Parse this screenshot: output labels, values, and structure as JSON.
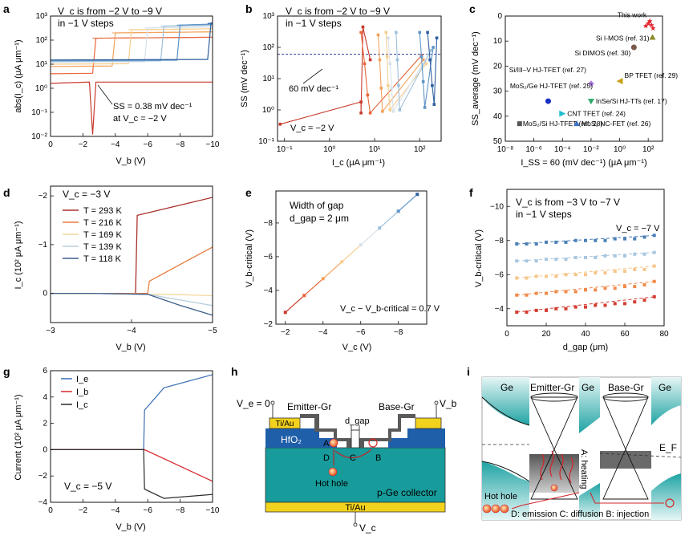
{
  "panels": {
    "a": {
      "letter": "a",
      "note_line1": "V_c is from −2 V to −9 V",
      "note_line2": "in −1 V steps",
      "annotation_line1": "SS = 0.38 mV dec⁻¹",
      "annotation_line2": "at V_c = −2 V",
      "ylabel": "abs(I_c) (μA μm⁻¹)",
      "xlabel": "V_b (V)",
      "xticks": [
        "0",
        "−2",
        "−4",
        "−6",
        "−8",
        "−10"
      ],
      "yticks": [
        "10⁻²",
        "10⁻¹",
        "10⁰",
        "10¹",
        "10²",
        "10³"
      ]
    },
    "b": {
      "letter": "b",
      "note_line1": "V_c is from −2 V to −9 V",
      "note_line2": "in −1 V steps",
      "ref_label": "60 mV dec⁻¹",
      "vc_label": "V_c = −2 V",
      "ylabel": "SS (mV dec⁻¹)",
      "xlabel": "I_c (μA μm⁻¹)",
      "xticks": [
        "10⁻¹",
        "10⁰",
        "10¹",
        "10²"
      ],
      "yticks": [
        "10⁻¹",
        "10⁰",
        "10¹",
        "10²",
        "10³"
      ]
    },
    "c": {
      "letter": "c",
      "ylabel": "SS_average (mV dec⁻¹)",
      "xlabel": "I_SS = 60 (mV dec⁻¹) (μA μm⁻¹)",
      "xticks": [
        "10⁻⁸",
        "10⁻⁶",
        "10⁻⁴",
        "10⁻²",
        "10⁰",
        "10²"
      ],
      "yticks": [
        "0",
        "10",
        "20",
        "30",
        "40",
        "50"
      ]
    },
    "d": {
      "letter": "d",
      "vc_label": "V_c = −3 V",
      "ylabel": "I_c (10² μA μm⁻¹)",
      "xlabel": "V_b (V)",
      "xticks": [
        "−3",
        "−4",
        "−5"
      ],
      "yticks": [
        "0",
        "−1",
        "−2"
      ]
    },
    "e": {
      "letter": "e",
      "gap_line1": "Width of gap",
      "gap_line2": "d_gap = 2 μm",
      "relation": "V_c − V_b-critical = 0.7 V",
      "ylabel": "V_b-critical (V)",
      "xlabel": "V_c (V)",
      "xticks": [
        "−2",
        "−4",
        "−6",
        "−8"
      ],
      "yticks": [
        "−2",
        "−4",
        "−6",
        "−8"
      ]
    },
    "f": {
      "letter": "f",
      "note_line1": "V_c is from −3 V to −7 V",
      "note_line2": "in −1 V steps",
      "vc_label": "V_c = −7 V",
      "ylabel": "V_b-critical (V)",
      "xlabel": "d_gap (μm)",
      "xticks": [
        "0",
        "20",
        "40",
        "60",
        "80"
      ],
      "yticks": [
        "−4",
        "−6",
        "−8",
        "−10"
      ]
    },
    "g": {
      "letter": "g",
      "vc_label": "V_c = −5 V",
      "ylabel": "Current (10² μA μm⁻¹)",
      "xlabel": "V_b (V)",
      "xticks": [
        "0",
        "−2",
        "−4",
        "−6",
        "−8",
        "−10"
      ],
      "yticks": [
        "−4",
        "−2",
        "0",
        "2",
        "4",
        "6"
      ]
    },
    "h": {
      "letter": "h",
      "ve_label": "V_e = 0",
      "vb_label": "V_b",
      "vc_label": "V_c",
      "emitter": "Emitter-Gr",
      "base": "Base-Gr",
      "contact_left": "Ti/Au",
      "contact_bottom": "Ti/Au",
      "contact_right": "Ti/Au",
      "dielectric": "HfO₂",
      "gap": "d_gap",
      "hole_label": "Hot hole",
      "collector": "p-Ge collector",
      "point_a": "A",
      "point_b": "B",
      "point_c": "C",
      "point_d": "D"
    },
    "i": {
      "letter": "i",
      "ge_left": "Ge",
      "ge_mid": "Ge",
      "ge_right": "Ge",
      "emitter": "Emitter-Gr",
      "base": "Base-Gr",
      "fermi": "E_F",
      "heating": "A: heating",
      "hole": "Hot hole",
      "steps": "D: emission C: diffusion B: injection"
    }
  },
  "colors": {
    "vc_series": [
      "#c8392b",
      "#e8663a",
      "#f3a25c",
      "#f6cf8f",
      "#d6e2ea",
      "#9fc0dc",
      "#5f95c6",
      "#2f5f9f"
    ],
    "d_series": [
      "#a8322d",
      "#ea7c40",
      "#f4d9a0",
      "#b9cfdd",
      "#3d5f8a"
    ],
    "f_series": [
      "#d43d30",
      "#f08a4a",
      "#f6c68a",
      "#a7c6e0",
      "#4a7fb5"
    ],
    "g_series": [
      "#3a6fb4",
      "#d8282e",
      "#2a2a2a"
    ],
    "teal": "#149999",
    "contact": "#f3d21e",
    "hfo2": "#1f5ea8",
    "graphene": "#555555"
  },
  "chart_data": [
    {
      "panel": "a",
      "type": "line",
      "xlabel": "V_b (V)",
      "ylabel": "abs(I_c) (μA μm⁻¹)",
      "yscale": "log",
      "xlim": [
        0,
        -10
      ],
      "ylim": [
        0.01,
        1000
      ],
      "series": [
        {
          "name": "V_c = −2 V",
          "low": 1.8,
          "switch_vb": -2.6,
          "high": 1.8
        },
        {
          "name": "V_c = −3 V",
          "low": 4,
          "switch_vb": -2.8,
          "high": 120
        },
        {
          "name": "V_c = −4 V",
          "low": 8,
          "switch_vb": -4.0,
          "high": 200
        },
        {
          "name": "V_c = −5 V",
          "low": 10,
          "switch_vb": -5.0,
          "high": 270
        },
        {
          "name": "V_c = −6 V",
          "low": 12,
          "switch_vb": -6.0,
          "high": 320
        },
        {
          "name": "V_c = −7 V",
          "low": 13,
          "switch_vb": -7.0,
          "high": 380
        },
        {
          "name": "V_c = −8 V",
          "low": 14,
          "switch_vb": -8.0,
          "high": 420
        },
        {
          "name": "V_c = −9 V",
          "low": 15,
          "switch_vb": -9.9,
          "high": 480
        }
      ]
    },
    {
      "panel": "b",
      "type": "line",
      "xlabel": "I_c (μA μm⁻¹)",
      "ylabel": "SS (mV dec⁻¹)",
      "xscale": "log",
      "yscale": "log",
      "xlim": [
        0.07,
        300
      ],
      "ylim": [
        0.1,
        1000
      ],
      "reference_ss": 60,
      "series": [
        {
          "name": "V_c = −2 V",
          "x": [
            0.08,
            5,
            5,
            5.5,
            8
          ],
          "y": [
            0.35,
            1.8,
            0.8,
            450,
            40
          ]
        },
        {
          "name": "V_c = −3 V",
          "x": [
            5,
            6,
            7,
            8,
            110
          ],
          "y": [
            300,
            30,
            3,
            0.8,
            55
          ]
        },
        {
          "name": "V_c = −4 V",
          "x": [
            12,
            13,
            14,
            15,
            120
          ],
          "y": [
            250,
            40,
            5,
            0.9,
            40
          ]
        },
        {
          "name": "V_c = −5 V",
          "x": [
            18,
            19,
            20,
            22,
            140
          ],
          "y": [
            300,
            50,
            6,
            1,
            30
          ]
        },
        {
          "name": "V_c = −6 V",
          "x": [
            20,
            22,
            24,
            26,
            160
          ],
          "y": [
            200,
            30,
            5,
            0.9,
            60
          ]
        },
        {
          "name": "V_c = −7 V",
          "x": [
            30,
            32,
            34,
            36,
            180
          ],
          "y": [
            300,
            40,
            6,
            1,
            80
          ]
        },
        {
          "name": "V_c = −8 V",
          "x": [
            100,
            110,
            120,
            130,
            200
          ],
          "y": [
            300,
            50,
            8,
            1.2,
            100
          ]
        },
        {
          "name": "V_c = −9 V",
          "x": [
            150,
            170,
            190,
            210,
            240
          ],
          "y": [
            300,
            40,
            6,
            1.5,
            200
          ]
        }
      ]
    },
    {
      "panel": "c",
      "type": "scatter",
      "xlabel": "I_SS = 60 (mV dec⁻¹) (μA μm⁻¹)",
      "ylabel": "SS_average (mV dec⁻¹)",
      "xscale": "log",
      "xlim": [
        1e-08,
        1000
      ],
      "ylim": [
        0,
        50
      ],
      "yaxis_inverted": true,
      "points": [
        {
          "label": "This work",
          "x": 100,
          "y": 3,
          "color": "#e3232b",
          "marker": "star"
        },
        {
          "label": "Si I-MOS (ref. 31)",
          "x": 200,
          "y": 8.5,
          "color": "#8a8a2b",
          "marker": "triangle"
        },
        {
          "label": "Si DIMOS (ref. 30)",
          "x": 10,
          "y": 12.5,
          "color": "#7a5a4a",
          "marker": "circle"
        },
        {
          "label": "Si/III–V HJ-TFET (ref. 27)",
          "x": 0.01,
          "y": 27,
          "color": "#b07fe0",
          "marker": "diamond"
        },
        {
          "label": "BP TFET (ref. 29)",
          "x": 1,
          "y": 26,
          "color": "#c7a016",
          "marker": "triangle-left"
        },
        {
          "label": "MoS₂/Ge HJ-TFET (ref. 25)",
          "x": 1e-05,
          "y": 34,
          "color": "#1a2fc0",
          "marker": "circle"
        },
        {
          "label": "InSe/Si HJ-TTs (ref. 17)",
          "x": 0.01,
          "y": 34,
          "color": "#2aa86a",
          "marker": "triangle-down"
        },
        {
          "label": "CNT TFET (ref. 24)",
          "x": 0.0001,
          "y": 39,
          "color": "#22bcd0",
          "marker": "triangle-right"
        },
        {
          "label": "MoS₂/Si HJ-TFET (ref. 28)",
          "x": 1e-07,
          "y": 43,
          "color": "#555555",
          "marker": "square"
        },
        {
          "label": "MoS₂ NC-FET (ref. 26)",
          "x": 0.001,
          "y": 43,
          "color": "#3a6fc4",
          "marker": "triangle"
        }
      ]
    },
    {
      "panel": "d",
      "type": "line",
      "xlabel": "V_b (V)",
      "ylabel": "I_c (10² μA μm⁻¹)",
      "xlim": [
        -3,
        -5
      ],
      "ylim": [
        0.6,
        -2.2
      ],
      "series": [
        {
          "name": "T = 293 K",
          "switch_vb": -4.05,
          "high": -1.6,
          "end": -1.97
        },
        {
          "name": "T = 216 K",
          "switch_vb": -4.2,
          "high": -0.25,
          "end": -0.95
        },
        {
          "name": "T = 169 K",
          "end": 0.05
        },
        {
          "name": "T = 139 K",
          "end": 0.25
        },
        {
          "name": "T = 118 K",
          "end": 0.45
        }
      ]
    },
    {
      "panel": "e",
      "type": "line",
      "xlabel": "V_c (V)",
      "ylabel": "V_b-critical (V)",
      "xlim": [
        -1.5,
        -9.5
      ],
      "ylim": [
        -2,
        -9.9
      ],
      "x": [
        -2,
        -3,
        -4,
        -5,
        -6,
        -7,
        -8,
        -9
      ],
      "y": [
        -2.7,
        -3.7,
        -4.7,
        -5.7,
        -6.7,
        -7.7,
        -8.7,
        -9.7
      ]
    },
    {
      "panel": "f",
      "type": "scatter",
      "xlabel": "d_gap (μm)",
      "ylabel": "V_b-critical (V)",
      "xlim": [
        0,
        80
      ],
      "ylim": [
        -3,
        -11
      ],
      "x": [
        5,
        10,
        15,
        20,
        25,
        30,
        35,
        40,
        45,
        50,
        55,
        60,
        65,
        70,
        75
      ],
      "series": [
        {
          "name": "V_c = −3 V",
          "y": [
            -3.8,
            -3.8,
            -3.9,
            -3.9,
            -4.0,
            -4.0,
            -4.1,
            -4.1,
            -4.2,
            -4.2,
            -4.3,
            -4.3,
            -4.4,
            -4.5,
            -4.7
          ]
        },
        {
          "name": "V_c = −4 V",
          "y": [
            -4.8,
            -4.8,
            -4.9,
            -4.9,
            -5.0,
            -5.0,
            -5.0,
            -5.1,
            -5.1,
            -5.2,
            -5.2,
            -5.3,
            -5.3,
            -5.4,
            -5.6
          ]
        },
        {
          "name": "V_c = −5 V",
          "y": [
            -5.8,
            -5.8,
            -5.9,
            -5.9,
            -5.9,
            -6.0,
            -6.0,
            -6.0,
            -6.1,
            -6.1,
            -6.2,
            -6.2,
            -6.3,
            -6.3,
            -6.5
          ]
        },
        {
          "name": "V_c = −6 V",
          "y": [
            -6.8,
            -6.8,
            -6.8,
            -6.9,
            -6.9,
            -6.9,
            -7.0,
            -7.0,
            -7.0,
            -7.1,
            -7.1,
            -7.1,
            -7.2,
            -7.2,
            -7.3
          ]
        },
        {
          "name": "V_c = −7 V",
          "y": [
            -7.8,
            -7.8,
            -7.8,
            -7.9,
            -7.9,
            -7.9,
            -8.0,
            -8.0,
            -8.0,
            -8.0,
            -8.1,
            -8.1,
            -8.1,
            -8.2,
            -8.3
          ]
        }
      ]
    },
    {
      "panel": "g",
      "type": "line",
      "xlabel": "V_b (V)",
      "ylabel": "Current (10² μA μm⁻¹)",
      "xlim": [
        0,
        -10
      ],
      "ylim": [
        -4,
        6
      ],
      "switch_vb": -5.8,
      "series": [
        {
          "name": "I_e",
          "after": [
            3.0,
            5.7
          ]
        },
        {
          "name": "I_b",
          "after": [
            0.0,
            -2.4
          ]
        },
        {
          "name": "I_c",
          "after": [
            -3.0,
            -3.4
          ]
        }
      ]
    }
  ]
}
